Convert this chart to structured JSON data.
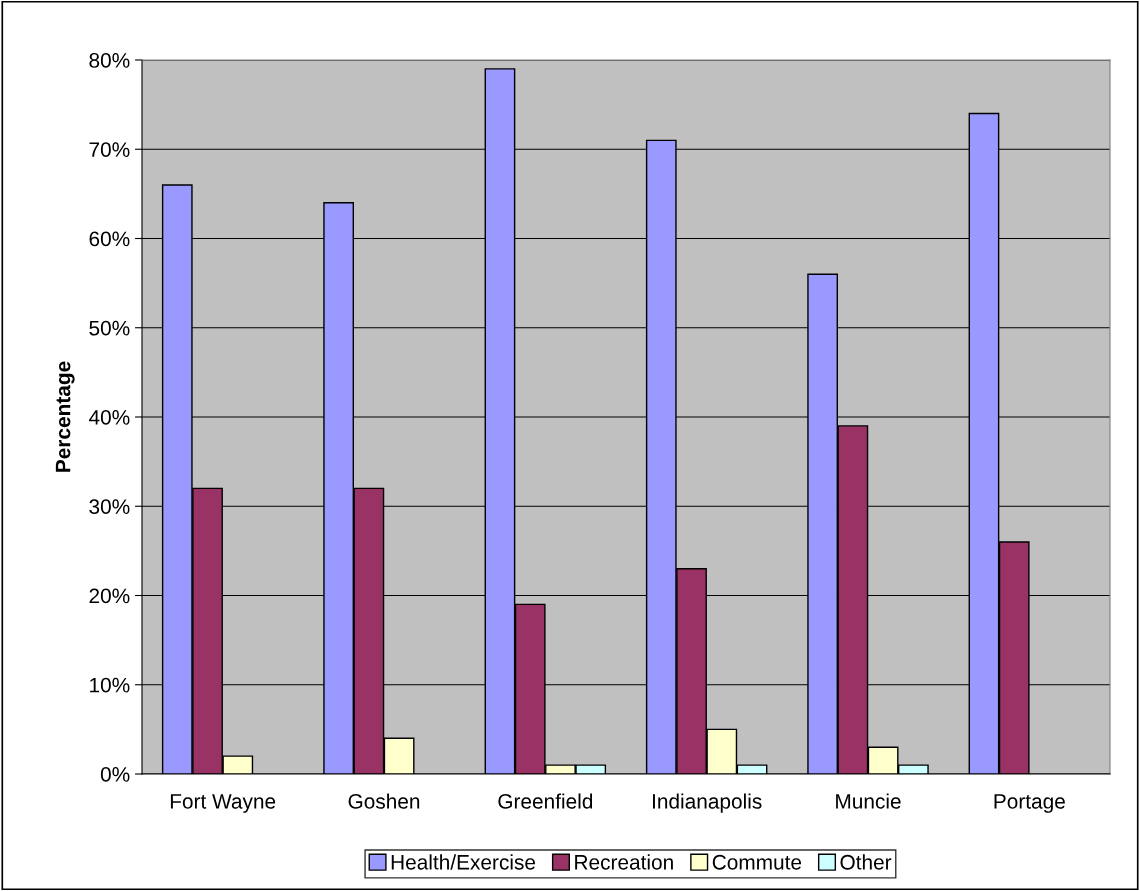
{
  "chart_data": {
    "type": "bar",
    "ylabel": "Percentage",
    "categories": [
      "Fort Wayne",
      "Goshen",
      "Greenfield",
      "Indianapolis",
      "Muncie",
      "Portage"
    ],
    "series": [
      {
        "name": "Health/Exercise",
        "color": "#9999ff",
        "values": [
          66,
          64,
          79,
          71,
          56,
          74
        ]
      },
      {
        "name": "Recreation",
        "color": "#993366",
        "values": [
          32,
          32,
          19,
          23,
          39,
          26
        ]
      },
      {
        "name": "Commute",
        "color": "#ffffcc",
        "values": [
          2,
          4,
          1,
          5,
          3,
          null
        ]
      },
      {
        "name": "Other",
        "color": "#ccffff",
        "values": [
          null,
          null,
          1,
          1,
          1,
          null
        ]
      }
    ],
    "ylim": [
      0,
      80
    ],
    "yticks": [
      {
        "value": 0,
        "label": "0%"
      },
      {
        "value": 10,
        "label": "10%"
      },
      {
        "value": 20,
        "label": "20%"
      },
      {
        "value": 30,
        "label": "30%"
      },
      {
        "value": 40,
        "label": "40%"
      },
      {
        "value": 50,
        "label": "50%"
      },
      {
        "value": 60,
        "label": "60%"
      },
      {
        "value": 70,
        "label": "70%"
      },
      {
        "value": 80,
        "label": "80%"
      }
    ],
    "grid": "y",
    "legend": "bottom"
  }
}
